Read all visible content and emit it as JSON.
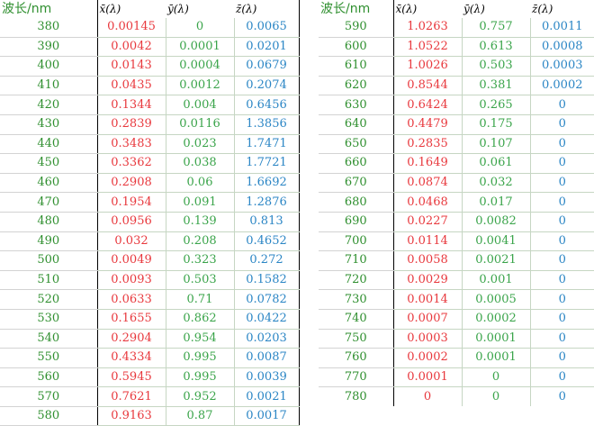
{
  "headers": {
    "wavelength": "波长/nm",
    "x": "x̄(λ)",
    "y": "ȳ(λ)",
    "z": "z̄(λ)"
  },
  "left_rows": [
    {
      "wl": "380",
      "x": "0.00145",
      "y": "0",
      "z": "0.0065"
    },
    {
      "wl": "390",
      "x": "0.0042",
      "y": "0.0001",
      "z": "0.0201"
    },
    {
      "wl": "400",
      "x": "0.0143",
      "y": "0.0004",
      "z": "0.0679"
    },
    {
      "wl": "410",
      "x": "0.0435",
      "y": "0.0012",
      "z": "0.2074"
    },
    {
      "wl": "420",
      "x": "0.1344",
      "y": "0.004",
      "z": "0.6456"
    },
    {
      "wl": "430",
      "x": "0.2839",
      "y": "0.0116",
      "z": "1.3856"
    },
    {
      "wl": "440",
      "x": "0.3483",
      "y": "0.023",
      "z": "1.7471"
    },
    {
      "wl": "450",
      "x": "0.3362",
      "y": "0.038",
      "z": "1.7721"
    },
    {
      "wl": "460",
      "x": "0.2908",
      "y": "0.06",
      "z": "1.6692"
    },
    {
      "wl": "470",
      "x": "0.1954",
      "y": "0.091",
      "z": "1.2876"
    },
    {
      "wl": "480",
      "x": "0.0956",
      "y": "0.139",
      "z": "0.813"
    },
    {
      "wl": "490",
      "x": "0.032",
      "y": "0.208",
      "z": "0.4652"
    },
    {
      "wl": "500",
      "x": "0.0049",
      "y": "0.323",
      "z": "0.272"
    },
    {
      "wl": "510",
      "x": "0.0093",
      "y": "0.503",
      "z": "0.1582"
    },
    {
      "wl": "520",
      "x": "0.0633",
      "y": "0.71",
      "z": "0.0782"
    },
    {
      "wl": "530",
      "x": "0.1655",
      "y": "0.862",
      "z": "0.0422"
    },
    {
      "wl": "540",
      "x": "0.2904",
      "y": "0.954",
      "z": "0.0203"
    },
    {
      "wl": "550",
      "x": "0.4334",
      "y": "0.995",
      "z": "0.0087"
    },
    {
      "wl": "560",
      "x": "0.5945",
      "y": "0.995",
      "z": "0.0039"
    },
    {
      "wl": "570",
      "x": "0.7621",
      "y": "0.952",
      "z": "0.0021"
    },
    {
      "wl": "580",
      "x": "0.9163",
      "y": "0.87",
      "z": "0.0017"
    }
  ],
  "right_rows": [
    {
      "wl": "590",
      "x": "1.0263",
      "y": "0.757",
      "z": "0.0011"
    },
    {
      "wl": "600",
      "x": "1.0522",
      "y": "0.613",
      "z": "0.0008"
    },
    {
      "wl": "610",
      "x": "1.0026",
      "y": "0.503",
      "z": "0.0003"
    },
    {
      "wl": "620",
      "x": "0.8544",
      "y": "0.381",
      "z": "0.0002"
    },
    {
      "wl": "630",
      "x": "0.6424",
      "y": "0.265",
      "z": "0"
    },
    {
      "wl": "640",
      "x": "0.4479",
      "y": "0.175",
      "z": "0"
    },
    {
      "wl": "650",
      "x": "0.2835",
      "y": "0.107",
      "z": "0"
    },
    {
      "wl": "660",
      "x": "0.1649",
      "y": "0.061",
      "z": "0"
    },
    {
      "wl": "670",
      "x": "0.0874",
      "y": "0.032",
      "z": "0"
    },
    {
      "wl": "680",
      "x": "0.0468",
      "y": "0.017",
      "z": "0"
    },
    {
      "wl": "690",
      "x": "0.0227",
      "y": "0.0082",
      "z": "0"
    },
    {
      "wl": "700",
      "x": "0.0114",
      "y": "0.0041",
      "z": "0"
    },
    {
      "wl": "710",
      "x": "0.0058",
      "y": "0.0021",
      "z": "0"
    },
    {
      "wl": "720",
      "x": "0.0029",
      "y": "0.001",
      "z": "0"
    },
    {
      "wl": "730",
      "x": "0.0014",
      "y": "0.0005",
      "z": "0"
    },
    {
      "wl": "740",
      "x": "0.0007",
      "y": "0.0002",
      "z": "0"
    },
    {
      "wl": "750",
      "x": "0.0003",
      "y": "0.0001",
      "z": "0"
    },
    {
      "wl": "760",
      "x": "0.0002",
      "y": "0.0001",
      "z": "0"
    },
    {
      "wl": "770",
      "x": "0.0001",
      "y": "0",
      "z": "0"
    },
    {
      "wl": "780",
      "x": "0",
      "y": "0",
      "z": "0"
    }
  ],
  "colors": {
    "wavelength": "#2f8f2f",
    "x": "#e8383d",
    "y": "#3aa44a",
    "z": "#2b86c5"
  }
}
